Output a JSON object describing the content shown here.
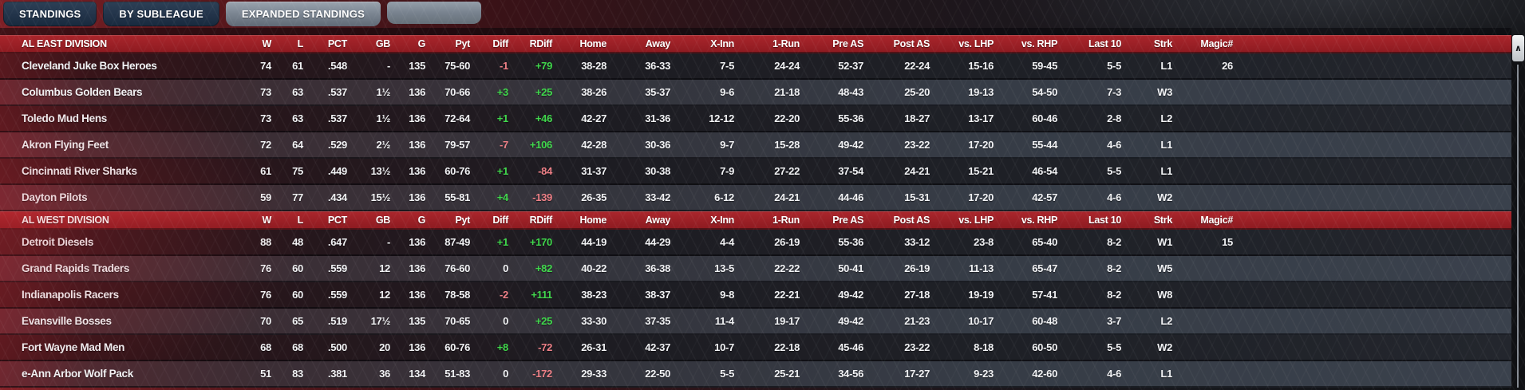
{
  "tabs": [
    {
      "label": "STANDINGS",
      "active": false
    },
    {
      "label": "BY SUBLEAGUE",
      "active": false
    },
    {
      "label": "EXPANDED STANDINGS",
      "active": true
    }
  ],
  "table": {
    "columns": [
      "W",
      "L",
      "PCT",
      "GB",
      "G",
      "Pyt",
      "Diff",
      "RDiff",
      "Home",
      "Away",
      "X-Inn",
      "1-Run",
      "Pre AS",
      "Post AS",
      "vs. LHP",
      "vs. RHP",
      "Last 10",
      "Strk",
      "Magic#"
    ],
    "signed_columns": [
      "Diff",
      "RDiff"
    ],
    "divisions": [
      {
        "name": "AL EAST DIVISION",
        "teams": [
          {
            "name": "Cleveland Juke Box Heroes",
            "values": [
              "74",
              "61",
              ".548",
              "-",
              "135",
              "75-60",
              "-1",
              "+79",
              "38-28",
              "36-33",
              "7-5",
              "24-24",
              "52-37",
              "22-24",
              "15-16",
              "59-45",
              "5-5",
              "L1",
              "26"
            ]
          },
          {
            "name": "Columbus Golden Bears",
            "values": [
              "73",
              "63",
              ".537",
              "1½",
              "136",
              "70-66",
              "+3",
              "+25",
              "38-26",
              "35-37",
              "9-6",
              "21-18",
              "48-43",
              "25-20",
              "19-13",
              "54-50",
              "7-3",
              "W3",
              ""
            ]
          },
          {
            "name": "Toledo Mud Hens",
            "values": [
              "73",
              "63",
              ".537",
              "1½",
              "136",
              "72-64",
              "+1",
              "+46",
              "42-27",
              "31-36",
              "12-12",
              "22-20",
              "55-36",
              "18-27",
              "13-17",
              "60-46",
              "2-8",
              "L2",
              ""
            ]
          },
          {
            "name": "Akron Flying Feet",
            "values": [
              "72",
              "64",
              ".529",
              "2½",
              "136",
              "79-57",
              "-7",
              "+106",
              "42-28",
              "30-36",
              "9-7",
              "15-28",
              "49-42",
              "23-22",
              "17-20",
              "55-44",
              "4-6",
              "L1",
              ""
            ]
          },
          {
            "name": "Cincinnati River Sharks",
            "values": [
              "61",
              "75",
              ".449",
              "13½",
              "136",
              "60-76",
              "+1",
              "-84",
              "31-37",
              "30-38",
              "7-9",
              "27-22",
              "37-54",
              "24-21",
              "15-21",
              "46-54",
              "5-5",
              "L1",
              ""
            ]
          },
          {
            "name": "Dayton Pilots",
            "values": [
              "59",
              "77",
              ".434",
              "15½",
              "136",
              "55-81",
              "+4",
              "-139",
              "26-35",
              "33-42",
              "6-12",
              "24-21",
              "44-46",
              "15-31",
              "17-20",
              "42-57",
              "4-6",
              "W2",
              ""
            ]
          }
        ]
      },
      {
        "name": "AL WEST DIVISION",
        "teams": [
          {
            "name": "Detroit Diesels",
            "values": [
              "88",
              "48",
              ".647",
              "-",
              "136",
              "87-49",
              "+1",
              "+170",
              "44-19",
              "44-29",
              "4-4",
              "26-19",
              "55-36",
              "33-12",
              "23-8",
              "65-40",
              "8-2",
              "W1",
              "15"
            ]
          },
          {
            "name": "Grand Rapids Traders",
            "values": [
              "76",
              "60",
              ".559",
              "12",
              "136",
              "76-60",
              "0",
              "+82",
              "40-22",
              "36-38",
              "13-5",
              "22-22",
              "50-41",
              "26-19",
              "11-13",
              "65-47",
              "8-2",
              "W5",
              ""
            ]
          },
          {
            "name": "Indianapolis Racers",
            "values": [
              "76",
              "60",
              ".559",
              "12",
              "136",
              "78-58",
              "-2",
              "+111",
              "38-23",
              "38-37",
              "9-8",
              "22-21",
              "49-42",
              "27-18",
              "19-19",
              "57-41",
              "8-2",
              "W8",
              ""
            ]
          },
          {
            "name": "Evansville Bosses",
            "values": [
              "70",
              "65",
              ".519",
              "17½",
              "135",
              "70-65",
              "0",
              "+25",
              "33-30",
              "37-35",
              "11-4",
              "19-17",
              "49-42",
              "21-23",
              "10-17",
              "60-48",
              "3-7",
              "L2",
              ""
            ]
          },
          {
            "name": "Fort Wayne Mad Men",
            "values": [
              "68",
              "68",
              ".500",
              "20",
              "136",
              "60-76",
              "+8",
              "-72",
              "26-31",
              "42-37",
              "10-7",
              "22-18",
              "45-46",
              "23-22",
              "8-18",
              "60-50",
              "5-5",
              "W2",
              ""
            ]
          },
          {
            "name": "e-Ann Arbor Wolf Pack",
            "values": [
              "51",
              "83",
              ".381",
              "36",
              "134",
              "51-83",
              "0",
              "-172",
              "29-33",
              "22-50",
              "5-5",
              "25-21",
              "34-56",
              "17-27",
              "9-23",
              "42-60",
              "4-6",
              "L1",
              ""
            ]
          }
        ]
      }
    ]
  },
  "colors": {
    "positive": "#3fd74b",
    "negative": "#ef8087",
    "neutral": "#f2f3f5",
    "division_header": "#9c2025"
  },
  "scrollbar": {
    "up_icon": "∧"
  }
}
